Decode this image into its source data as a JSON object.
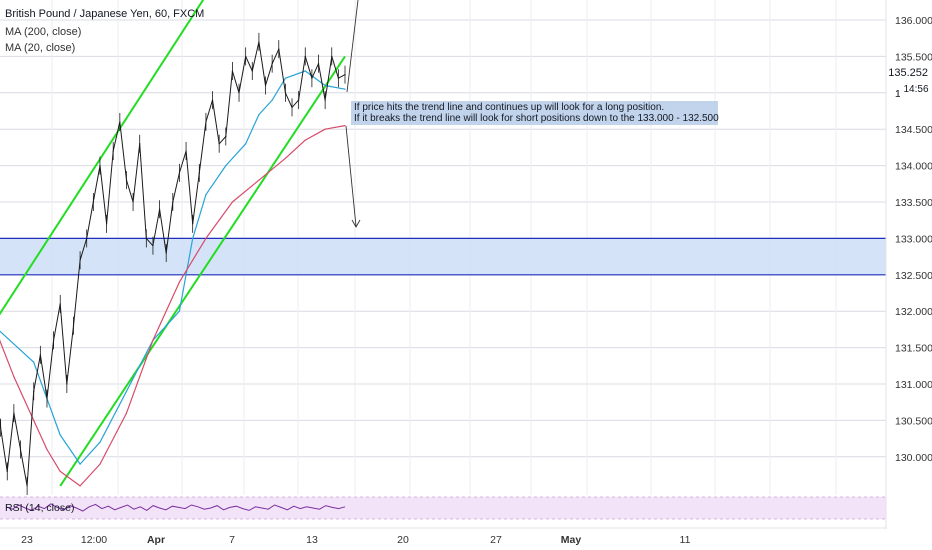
{
  "header": {
    "title": "British Pound / Japanese Yen, 60, FXCM",
    "ma200": "MA (200, close)",
    "ma20": "MA (20, close)"
  },
  "annotation": {
    "line1": "If price hits the trend line and continues up will look for a long position.",
    "line2": " If it breaks the trend line will look for short positions down to the 133.000 - 132.500"
  },
  "price_badge": "135.252",
  "time_badge": "14:56",
  "rsi_label": "RSI (14, close)",
  "colors": {
    "price_line": "#1a1a1a",
    "ma20": "#29a3d6",
    "ma200": "#d84a6a",
    "trend_lines": "#22dd22",
    "zone_fill": "#cfe0f6",
    "zone_border": "#1c2fbf",
    "rsi_line": "#7b2fa0",
    "rsi_band": "#f3e3f8"
  },
  "chart_data": {
    "type": "line",
    "title": "British Pound / Japanese Yen, 60, FXCM",
    "y_ticks": [
      "136.000",
      "135.500",
      "135.000",
      "134.500",
      "134.000",
      "133.500",
      "133.000",
      "132.500",
      "132.000",
      "131.500",
      "131.000",
      "130.500",
      "130.000"
    ],
    "ylim": [
      129.6,
      136.2
    ],
    "x_ticks": [
      "23",
      "12:00",
      "Apr",
      "7",
      "13",
      "20",
      "27",
      "May",
      "11"
    ],
    "series": [
      {
        "name": "MA (20, close)",
        "role": "ma20",
        "x": [
          0,
          6,
          10,
          13,
          16,
          20,
          24,
          28,
          30,
          32,
          35,
          38,
          40,
          42,
          44,
          47,
          50,
          53
        ],
        "y": [
          131.8,
          131.3,
          130.3,
          129.9,
          130.2,
          130.9,
          131.6,
          132.0,
          133.0,
          133.6,
          134.0,
          134.3,
          134.7,
          134.9,
          135.2,
          135.3,
          135.1,
          135.05
        ]
      },
      {
        "name": "MA (200, close)",
        "role": "ma200",
        "x": [
          0,
          3,
          6,
          8,
          10,
          13,
          16,
          20,
          24,
          28,
          32,
          36,
          40,
          44,
          47,
          50,
          53
        ],
        "y": [
          131.8,
          131.1,
          130.5,
          130.1,
          129.8,
          129.6,
          129.9,
          130.6,
          131.6,
          132.4,
          133.0,
          133.5,
          133.8,
          134.1,
          134.35,
          134.5,
          134.55
        ]
      },
      {
        "name": "Price",
        "role": "price",
        "x": [
          0,
          1,
          2,
          3,
          4,
          5,
          6,
          7,
          8,
          9,
          10,
          11,
          12,
          13,
          14,
          15,
          16,
          17,
          18,
          19,
          20,
          21,
          22,
          23,
          24,
          25,
          26,
          27,
          28,
          29,
          30,
          31,
          32,
          33,
          34,
          35,
          36,
          37,
          38,
          39,
          40,
          41,
          42,
          43,
          44,
          45,
          46,
          47,
          48,
          49,
          50,
          51,
          52,
          53
        ],
        "y": [
          131.2,
          130.4,
          129.8,
          130.6,
          130.1,
          129.6,
          130.9,
          131.4,
          130.8,
          131.6,
          132.1,
          131.0,
          131.8,
          132.7,
          133.0,
          133.5,
          134.0,
          133.2,
          134.2,
          134.6,
          133.8,
          133.5,
          134.3,
          133.0,
          132.9,
          133.4,
          132.8,
          133.5,
          133.9,
          134.2,
          133.2,
          133.9,
          134.6,
          134.9,
          134.3,
          134.4,
          135.3,
          135.0,
          135.5,
          135.3,
          135.7,
          135.1,
          135.4,
          135.6,
          135.0,
          134.8,
          134.9,
          135.5,
          135.2,
          135.4,
          134.9,
          135.5,
          135.2,
          135.25
        ]
      }
    ],
    "zone": {
      "from": 132.5,
      "to": 133.0
    },
    "trend_lines": [
      {
        "x1": -1,
        "y1": 131.7,
        "x2": 41,
        "y2": 137.6
      },
      {
        "x1": 10,
        "y1": 129.6,
        "x2": 53,
        "y2": 135.5
      }
    ],
    "rsi_series": [
      52,
      48,
      55,
      50,
      46,
      53,
      49,
      57,
      51,
      47,
      54,
      50,
      45,
      52,
      56,
      49,
      53,
      47,
      51,
      55,
      48,
      52,
      46,
      54,
      50,
      47,
      53,
      51,
      49,
      55,
      52,
      48,
      50,
      54,
      47,
      51,
      53,
      49,
      46,
      52,
      50,
      48,
      55,
      51,
      47,
      53,
      49,
      52,
      50,
      48,
      54,
      51,
      49,
      52
    ]
  }
}
